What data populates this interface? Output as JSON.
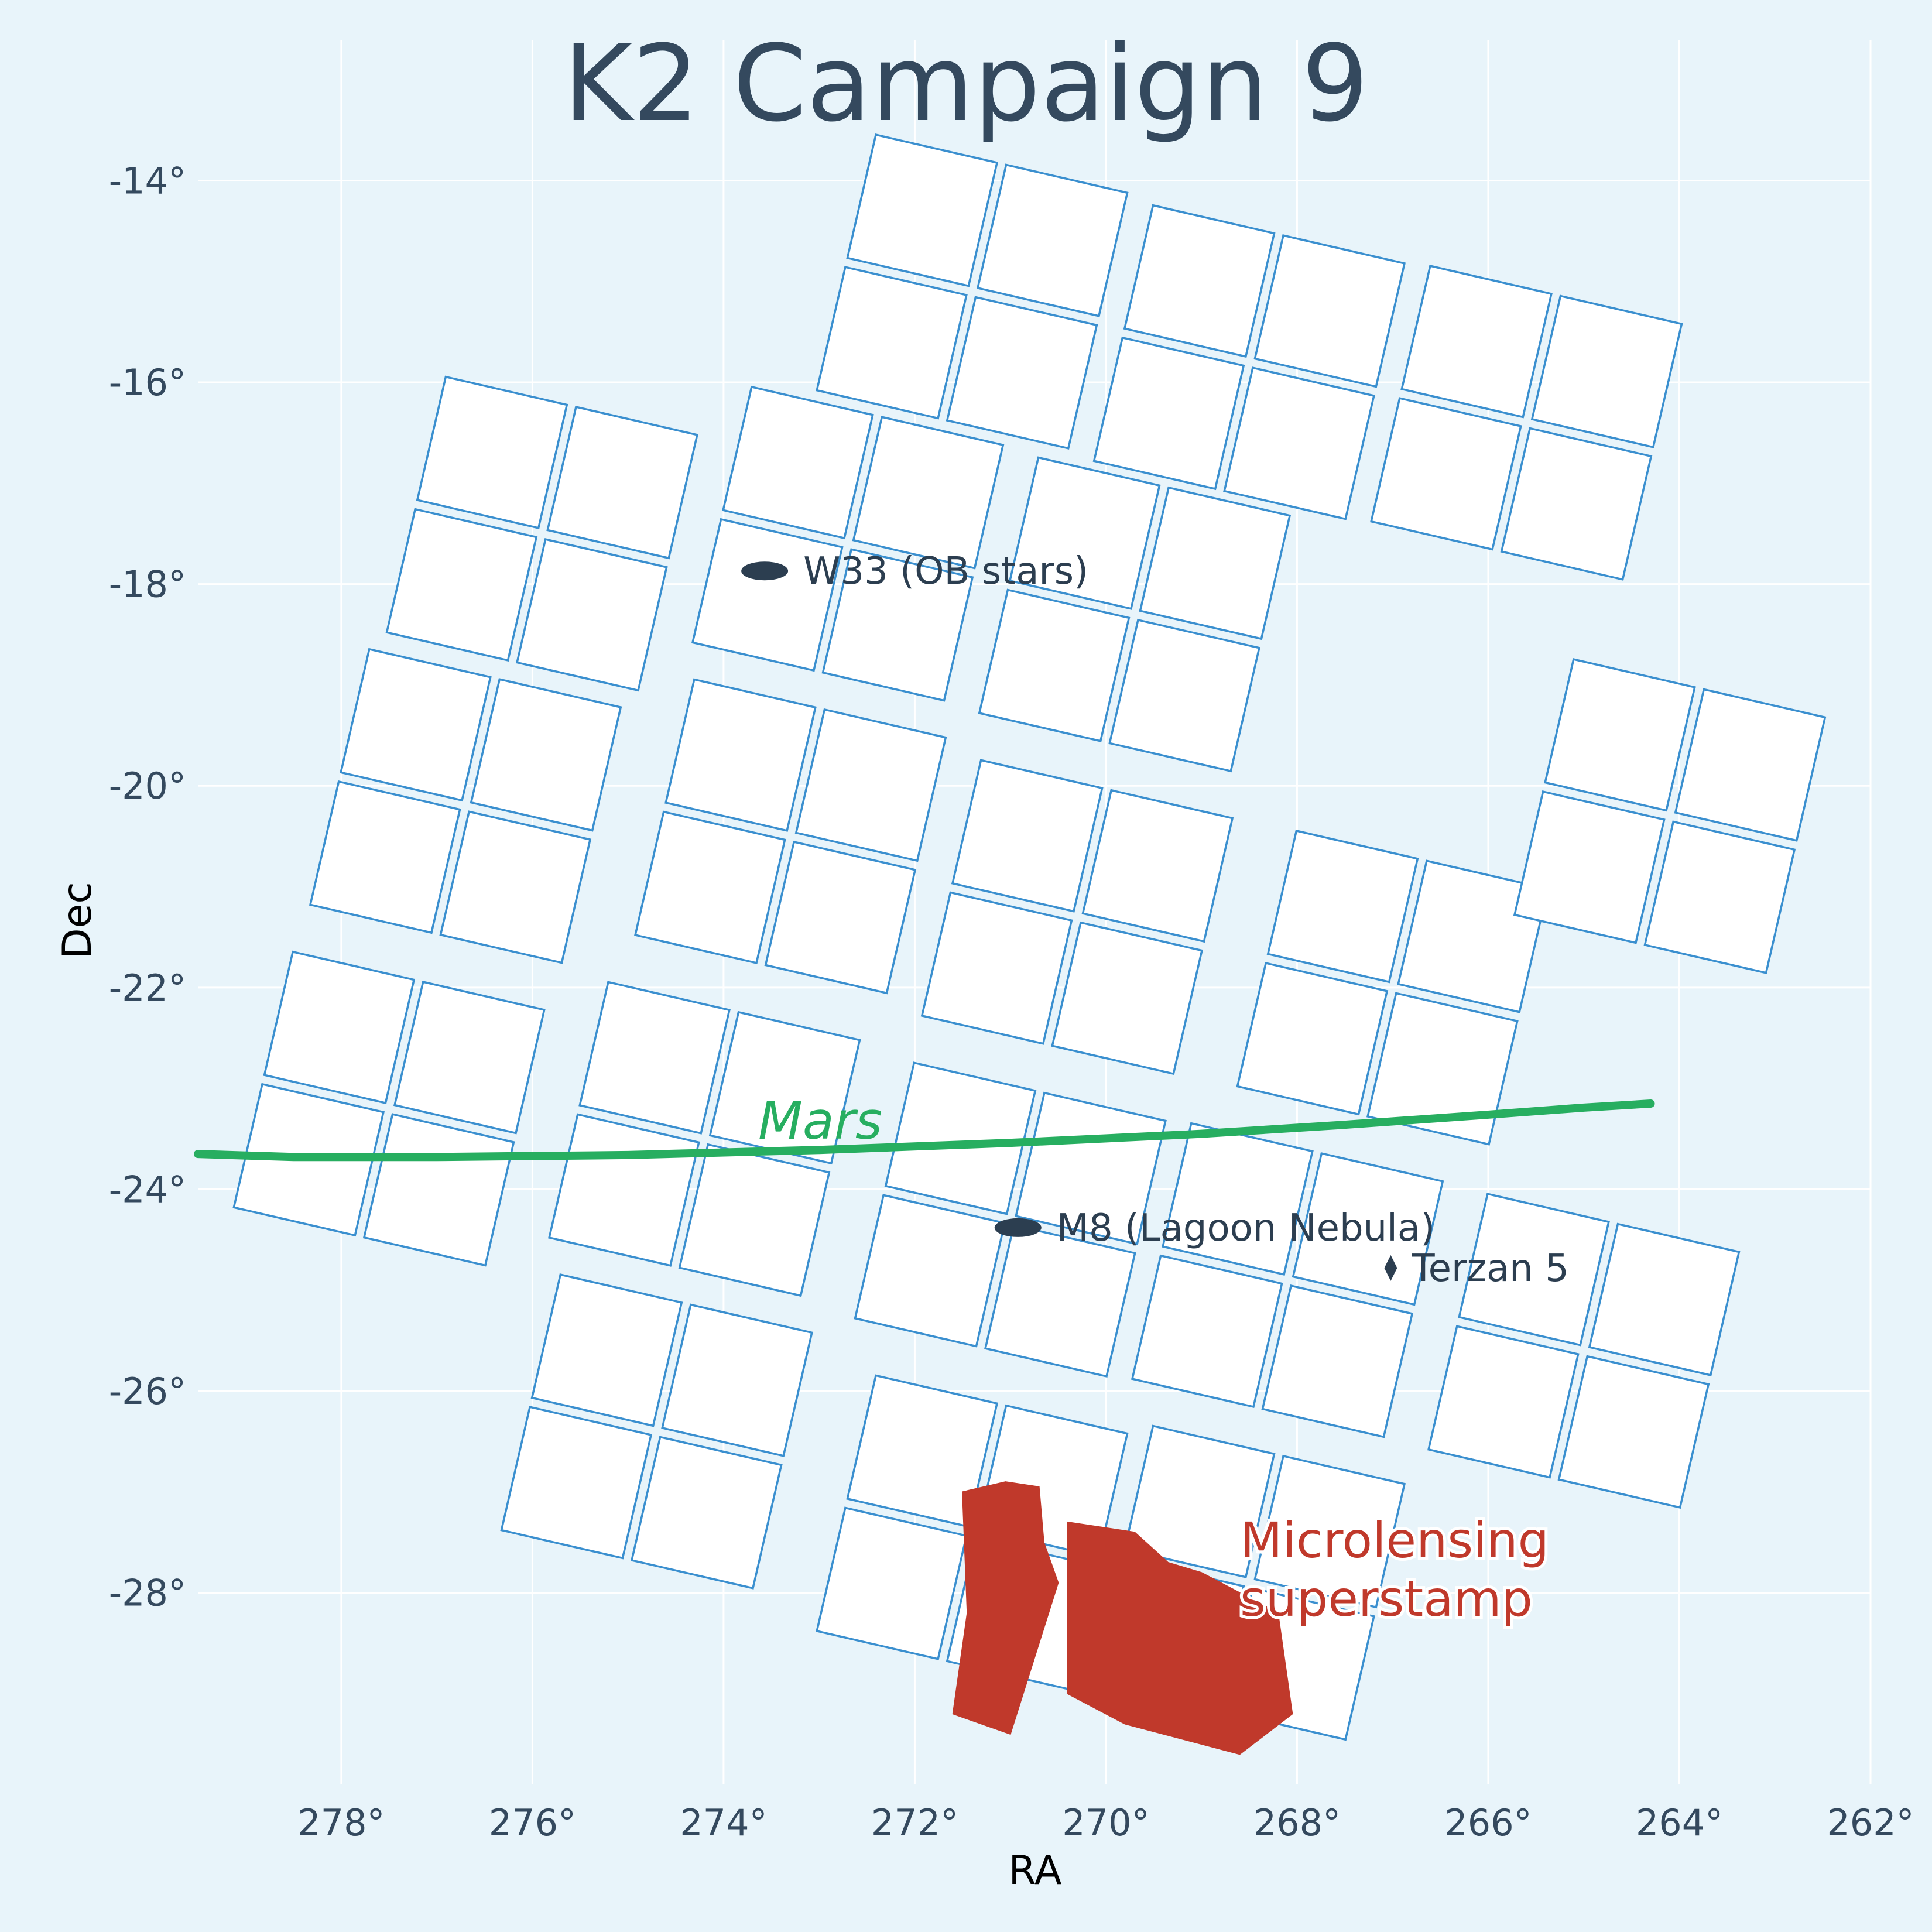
{
  "colors": {
    "background": "#e8f4fa",
    "ccd_fill": "#ffffff",
    "ccd_edge": "#3a8fcf",
    "text": "#34495e",
    "mars": "#27ae60",
    "superstamp": "#c0392b",
    "marker": "#2c3e50"
  },
  "chart_data": {
    "type": "footprint-map",
    "title": "K2 Campaign 9",
    "xlabel": "RA",
    "ylabel": "Dec",
    "xlim": [
      279.5,
      262
    ],
    "ylim": [
      -29.9,
      -12.5
    ],
    "x_inverted": true,
    "grid": true,
    "xticks": [
      278,
      276,
      274,
      272,
      270,
      268,
      266,
      264,
      262
    ],
    "xtick_labels": [
      "278°",
      "276°",
      "274°",
      "272°",
      "270°",
      "268°",
      "266°",
      "264°",
      "262°"
    ],
    "yticks": [
      -14,
      -16,
      -18,
      -20,
      -22,
      -24,
      -26,
      -28
    ],
    "ytick_labels": [
      "-14°",
      "-16°",
      "-18°",
      "-20°",
      "-22°",
      "-24°",
      "-26°",
      "-28°"
    ],
    "modules": [
      [
        271.4,
        -15.1
      ],
      [
        268.5,
        -15.8
      ],
      [
        265.6,
        -16.4
      ],
      [
        275.9,
        -17.5
      ],
      [
        272.7,
        -17.6
      ],
      [
        269.7,
        -18.3
      ],
      [
        276.7,
        -20.2
      ],
      [
        273.3,
        -20.5
      ],
      [
        270.3,
        -21.3
      ],
      [
        267.0,
        -22.0
      ],
      [
        264.1,
        -20.3
      ],
      [
        277.5,
        -23.2
      ],
      [
        274.2,
        -23.5
      ],
      [
        271.0,
        -24.3
      ],
      [
        268.1,
        -24.9
      ],
      [
        265.0,
        -25.6
      ],
      [
        274.7,
        -26.4
      ],
      [
        271.4,
        -27.4
      ],
      [
        268.5,
        -27.9
      ]
    ],
    "module_size_deg": [
      2.7,
      2.6
    ],
    "rotation_deg": 13,
    "mars_track": {
      "label": "Mars",
      "ra": [
        279.5,
        278.5,
        277.0,
        275.0,
        273.0,
        271.0,
        269.0,
        267.5,
        266.0,
        265.0,
        264.3
      ],
      "dec": [
        -23.65,
        -23.68,
        -23.68,
        -23.66,
        -23.61,
        -23.54,
        -23.45,
        -23.36,
        -23.26,
        -23.19,
        -23.15
      ]
    },
    "annotations": [
      {
        "label": "W33 (OB stars)",
        "ra": 273.57,
        "dec": -17.87,
        "marker": "ellipse"
      },
      {
        "label": "M8 (Lagoon Nebula)",
        "ra": 270.92,
        "dec": -24.38,
        "marker": "ellipse"
      },
      {
        "label": "Terzan 5",
        "ra": 267.02,
        "dec": -24.78,
        "marker": "diamond"
      }
    ],
    "superstamp": {
      "label_line1": "Microlensing",
      "label_line2": "superstamp",
      "regions": [
        [
          [
            271.5,
            -27.0
          ],
          [
            271.05,
            -26.9
          ],
          [
            270.7,
            -26.95
          ],
          [
            270.65,
            -27.5
          ],
          [
            270.5,
            -27.9
          ],
          [
            271.0,
            -29.4
          ],
          [
            271.6,
            -29.2
          ],
          [
            271.45,
            -28.2
          ]
        ],
        [
          [
            270.4,
            -27.3
          ],
          [
            269.7,
            -27.4
          ],
          [
            269.35,
            -27.7
          ],
          [
            269.0,
            -27.8
          ],
          [
            268.2,
            -28.2
          ],
          [
            268.05,
            -29.2
          ],
          [
            268.6,
            -29.6
          ],
          [
            269.8,
            -29.3
          ],
          [
            270.4,
            -29.0
          ]
        ]
      ]
    }
  }
}
